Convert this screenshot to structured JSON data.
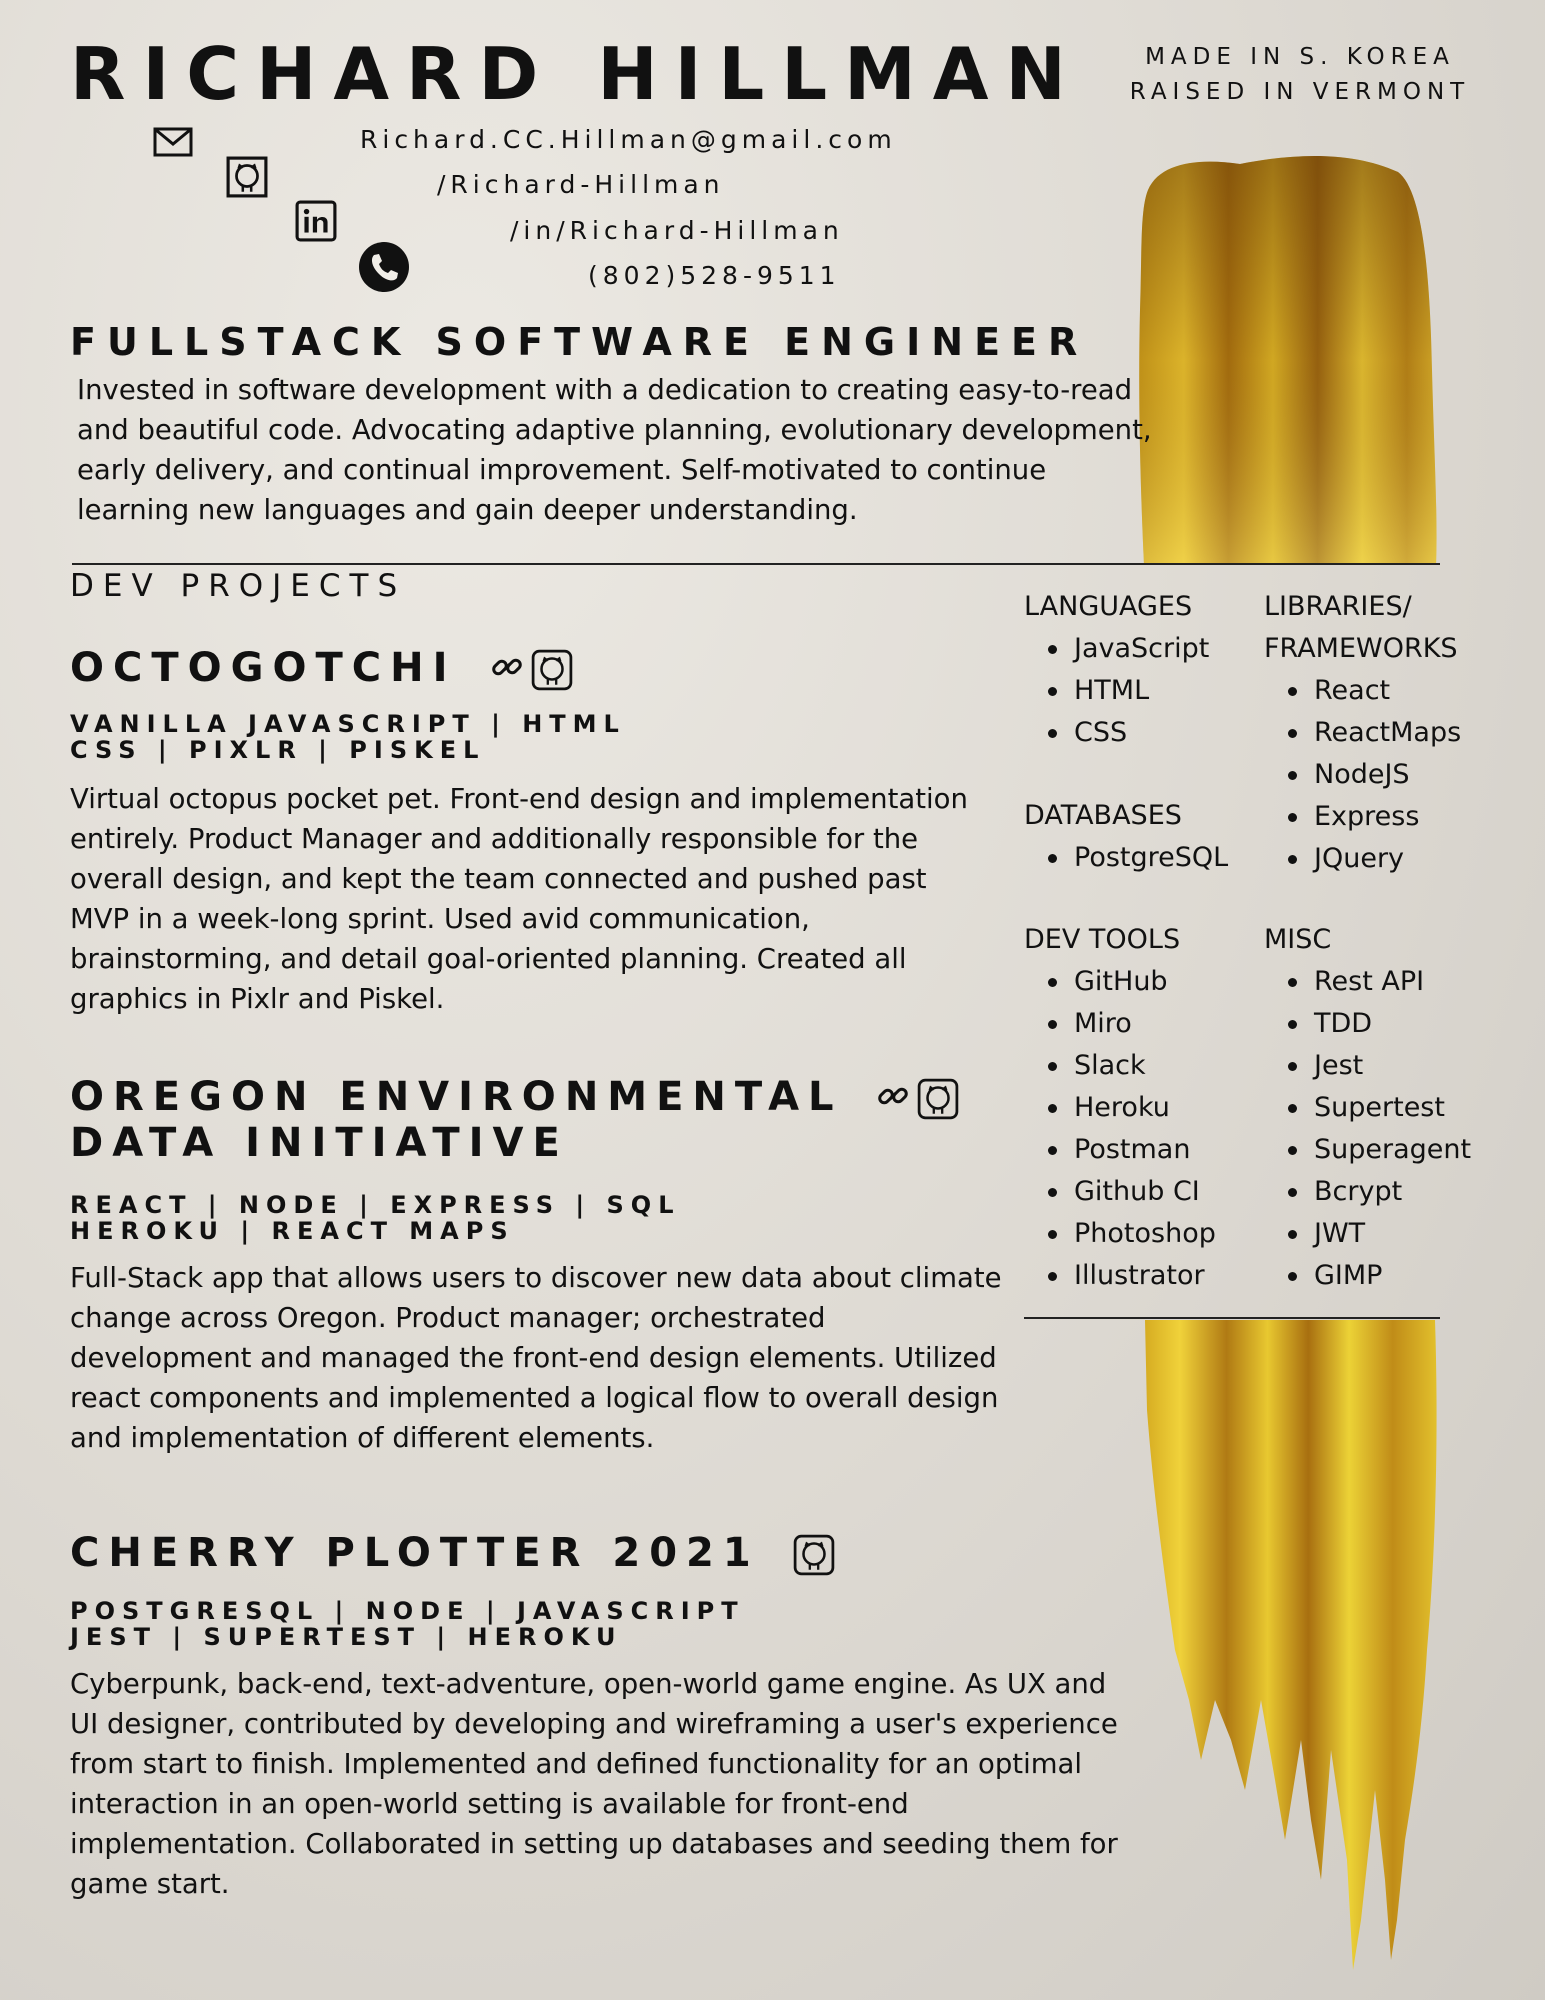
{
  "header": {
    "name": "RICHARD HILLMAN",
    "origin_line1": "MADE IN S. KOREA",
    "origin_line2": "RAISED IN VERMONT"
  },
  "contacts": [
    {
      "icon": "mail-icon",
      "text": "Richard.CC.Hillman@gmail.com"
    },
    {
      "icon": "github-icon",
      "text": "/Richard-Hillman"
    },
    {
      "icon": "linkedin-icon",
      "text": "/in/Richard-Hillman"
    },
    {
      "icon": "phone-icon",
      "text": "(802)528-9511"
    }
  ],
  "role_title": "FULLSTACK SOFTWARE ENGINEER",
  "summary": "Invested in software development with a dedication to creating easy-to-read and beautiful code. Advocating adaptive planning, evolutionary development, early delivery, and continual improvement. Self-motivated to continue learning new languages and gain deeper understanding.",
  "projects_heading": "DEV PROJECTS",
  "projects": [
    {
      "title": "OCTOGOTCHI",
      "stack_line1": "VANILLA JAVASCRIPT | HTML",
      "stack_line2": "CSS | PIXLR | PISKEL",
      "description": "Virtual octopus pocket pet.  Front-end design and implementation entirely.  Product Manager and additionally responsible for the overall design, and kept the team connected and pushed past MVP in a week-long sprint. Used avid communication, brainstorming, and detail goal-oriented planning. Created all graphics in Pixlr and Piskel.",
      "icons": [
        "link-icon",
        "github-icon"
      ]
    },
    {
      "title_line1": "OREGON ENVIRONMENTAL",
      "title_line2": "DATA INITIATIVE",
      "stack_line1": "REACT | NODE | EXPRESS | SQL",
      "stack_line2": "HEROKU | REACT MAPS",
      "description": "Full-Stack app that allows users to discover new data about climate change across Oregon. Product manager; orchestrated development and managed the front-end design elements. Utilized react components and implemented a logical flow to overall design and implementation of different elements.",
      "icons": [
        "link-icon",
        "github-icon"
      ]
    },
    {
      "title": "CHERRY PLOTTER 2021",
      "stack_line1": "POSTGRESQL | NODE | JAVASCRIPT",
      "stack_line2": "JEST | SUPERTEST | HEROKU",
      "description": "Cyberpunk, back-end, text-adventure, open-world game engine. As UX and UI designer, contributed by developing and wireframing a user's experience from start to finish. Implemented and defined functionality for an optimal interaction in an open-world setting is available for front-end implementation. Collaborated in setting up databases and seeding them for game start.",
      "icons": [
        "github-icon"
      ]
    }
  ],
  "skills": {
    "languages": {
      "heading": "LANGUAGES",
      "items": [
        "JavaScript",
        "HTML",
        "CSS"
      ]
    },
    "libraries": {
      "heading_line1": "LIBRARIES/",
      "heading_line2": "FRAMEWORKS",
      "items": [
        "React",
        "ReactMaps",
        "NodeJS",
        "Express",
        "JQuery"
      ]
    },
    "databases": {
      "heading": "DATABASES",
      "items": [
        "PostgreSQL"
      ]
    },
    "dev_tools": {
      "heading": "DEV TOOLS",
      "items": [
        "GitHub",
        "Miro",
        "Slack",
        "Heroku",
        "Postman",
        "Github CI",
        "Photoshop",
        "Illustrator"
      ]
    },
    "misc": {
      "heading": "MISC",
      "items": [
        "Rest API",
        "TDD",
        "Jest",
        "Supertest",
        "Superagent",
        "Bcrypt",
        "JWT",
        "GIMP"
      ]
    }
  },
  "colors": {
    "gold_dark": "#8a5a12",
    "gold": "#c9a01c",
    "gold_light": "#f2d63a",
    "ink": "#111111"
  }
}
